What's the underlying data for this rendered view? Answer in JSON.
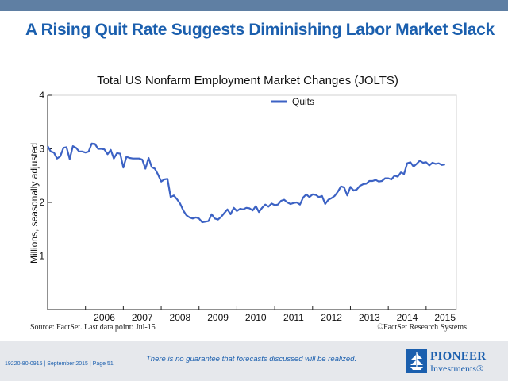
{
  "slide": {
    "title": "A Rising Quit Rate Suggests Diminishing Labor Market Slack",
    "source": "Source: FactSet. Last data point: Jul-15",
    "copyright": "©FactSet Research Systems",
    "disclaimer": "There is no guarantee that forecasts discussed will be realized.",
    "page_info": "19220-80-0915 | September 2015 | Page 51",
    "logo_line1": "PIONEER",
    "logo_line2": "Investments®"
  },
  "colors": {
    "line": "#3c62c4",
    "brand": "#1b5fae",
    "top_bar": "#5f7fa3"
  },
  "chart_data": {
    "type": "line",
    "title": "Total US Nonfarm Employment Market Changes (JOLTS)",
    "ylabel": "Millions, seasonally adjusted",
    "xlabel": "",
    "ylim": [
      0,
      4
    ],
    "yticks": [
      1,
      2,
      3,
      4
    ],
    "xlim": [
      2005.0,
      2015.8
    ],
    "xticks": [
      "2006",
      "2007",
      "2008",
      "2009",
      "2010",
      "2011",
      "2012",
      "2013",
      "2014",
      "2015"
    ],
    "grid": false,
    "legend": "top-center",
    "series": [
      {
        "name": "Quits",
        "x": [
          "2005-01",
          "2005-02",
          "2005-03",
          "2005-04",
          "2005-05",
          "2005-06",
          "2005-07",
          "2005-08",
          "2005-09",
          "2005-10",
          "2005-11",
          "2005-12",
          "2006-01",
          "2006-02",
          "2006-03",
          "2006-04",
          "2006-05",
          "2006-06",
          "2006-07",
          "2006-08",
          "2006-09",
          "2006-10",
          "2006-11",
          "2006-12",
          "2007-01",
          "2007-02",
          "2007-03",
          "2007-04",
          "2007-05",
          "2007-06",
          "2007-07",
          "2007-08",
          "2007-09",
          "2007-10",
          "2007-11",
          "2007-12",
          "2008-01",
          "2008-02",
          "2008-03",
          "2008-04",
          "2008-05",
          "2008-06",
          "2008-07",
          "2008-08",
          "2008-09",
          "2008-10",
          "2008-11",
          "2008-12",
          "2009-01",
          "2009-02",
          "2009-03",
          "2009-04",
          "2009-05",
          "2009-06",
          "2009-07",
          "2009-08",
          "2009-09",
          "2009-10",
          "2009-11",
          "2009-12",
          "2010-01",
          "2010-02",
          "2010-03",
          "2010-04",
          "2010-05",
          "2010-06",
          "2010-07",
          "2010-08",
          "2010-09",
          "2010-10",
          "2010-11",
          "2010-12",
          "2011-01",
          "2011-02",
          "2011-03",
          "2011-04",
          "2011-05",
          "2011-06",
          "2011-07",
          "2011-08",
          "2011-09",
          "2011-10",
          "2011-11",
          "2011-12",
          "2012-01",
          "2012-02",
          "2012-03",
          "2012-04",
          "2012-05",
          "2012-06",
          "2012-07",
          "2012-08",
          "2012-09",
          "2012-10",
          "2012-11",
          "2012-12",
          "2013-01",
          "2013-02",
          "2013-03",
          "2013-04",
          "2013-05",
          "2013-06",
          "2013-07",
          "2013-08",
          "2013-09",
          "2013-10",
          "2013-11",
          "2013-12",
          "2014-01",
          "2014-02",
          "2014-03",
          "2014-04",
          "2014-05",
          "2014-06",
          "2014-07",
          "2014-08",
          "2014-09",
          "2014-10",
          "2014-11",
          "2014-12",
          "2015-01",
          "2015-02",
          "2015-03",
          "2015-04",
          "2015-05",
          "2015-06",
          "2015-07"
        ],
        "values": [
          3.05,
          2.95,
          2.93,
          2.82,
          2.86,
          3.02,
          3.03,
          2.81,
          3.05,
          3.02,
          2.95,
          2.95,
          2.93,
          2.95,
          3.1,
          3.09,
          3.0,
          3.0,
          2.99,
          2.9,
          2.98,
          2.82,
          2.92,
          2.91,
          2.65,
          2.85,
          2.83,
          2.82,
          2.82,
          2.82,
          2.8,
          2.63,
          2.83,
          2.66,
          2.63,
          2.52,
          2.39,
          2.43,
          2.44,
          2.1,
          2.13,
          2.06,
          1.98,
          1.85,
          1.76,
          1.72,
          1.7,
          1.72,
          1.7,
          1.63,
          1.64,
          1.65,
          1.78,
          1.7,
          1.68,
          1.73,
          1.8,
          1.87,
          1.78,
          1.9,
          1.84,
          1.88,
          1.87,
          1.9,
          1.89,
          1.85,
          1.93,
          1.82,
          1.9,
          1.96,
          1.92,
          1.98,
          1.95,
          1.96,
          2.03,
          2.05,
          2.0,
          1.97,
          1.99,
          2.0,
          1.96,
          2.09,
          2.15,
          2.1,
          2.15,
          2.14,
          2.1,
          2.12,
          1.97,
          2.05,
          2.08,
          2.12,
          2.2,
          2.3,
          2.28,
          2.13,
          2.29,
          2.22,
          2.24,
          2.31,
          2.34,
          2.35,
          2.4,
          2.4,
          2.42,
          2.39,
          2.4,
          2.45,
          2.45,
          2.43,
          2.5,
          2.48,
          2.56,
          2.53,
          2.73,
          2.75,
          2.67,
          2.72,
          2.78,
          2.74,
          2.75,
          2.69,
          2.74,
          2.72,
          2.73,
          2.7,
          2.71
        ]
      }
    ]
  }
}
